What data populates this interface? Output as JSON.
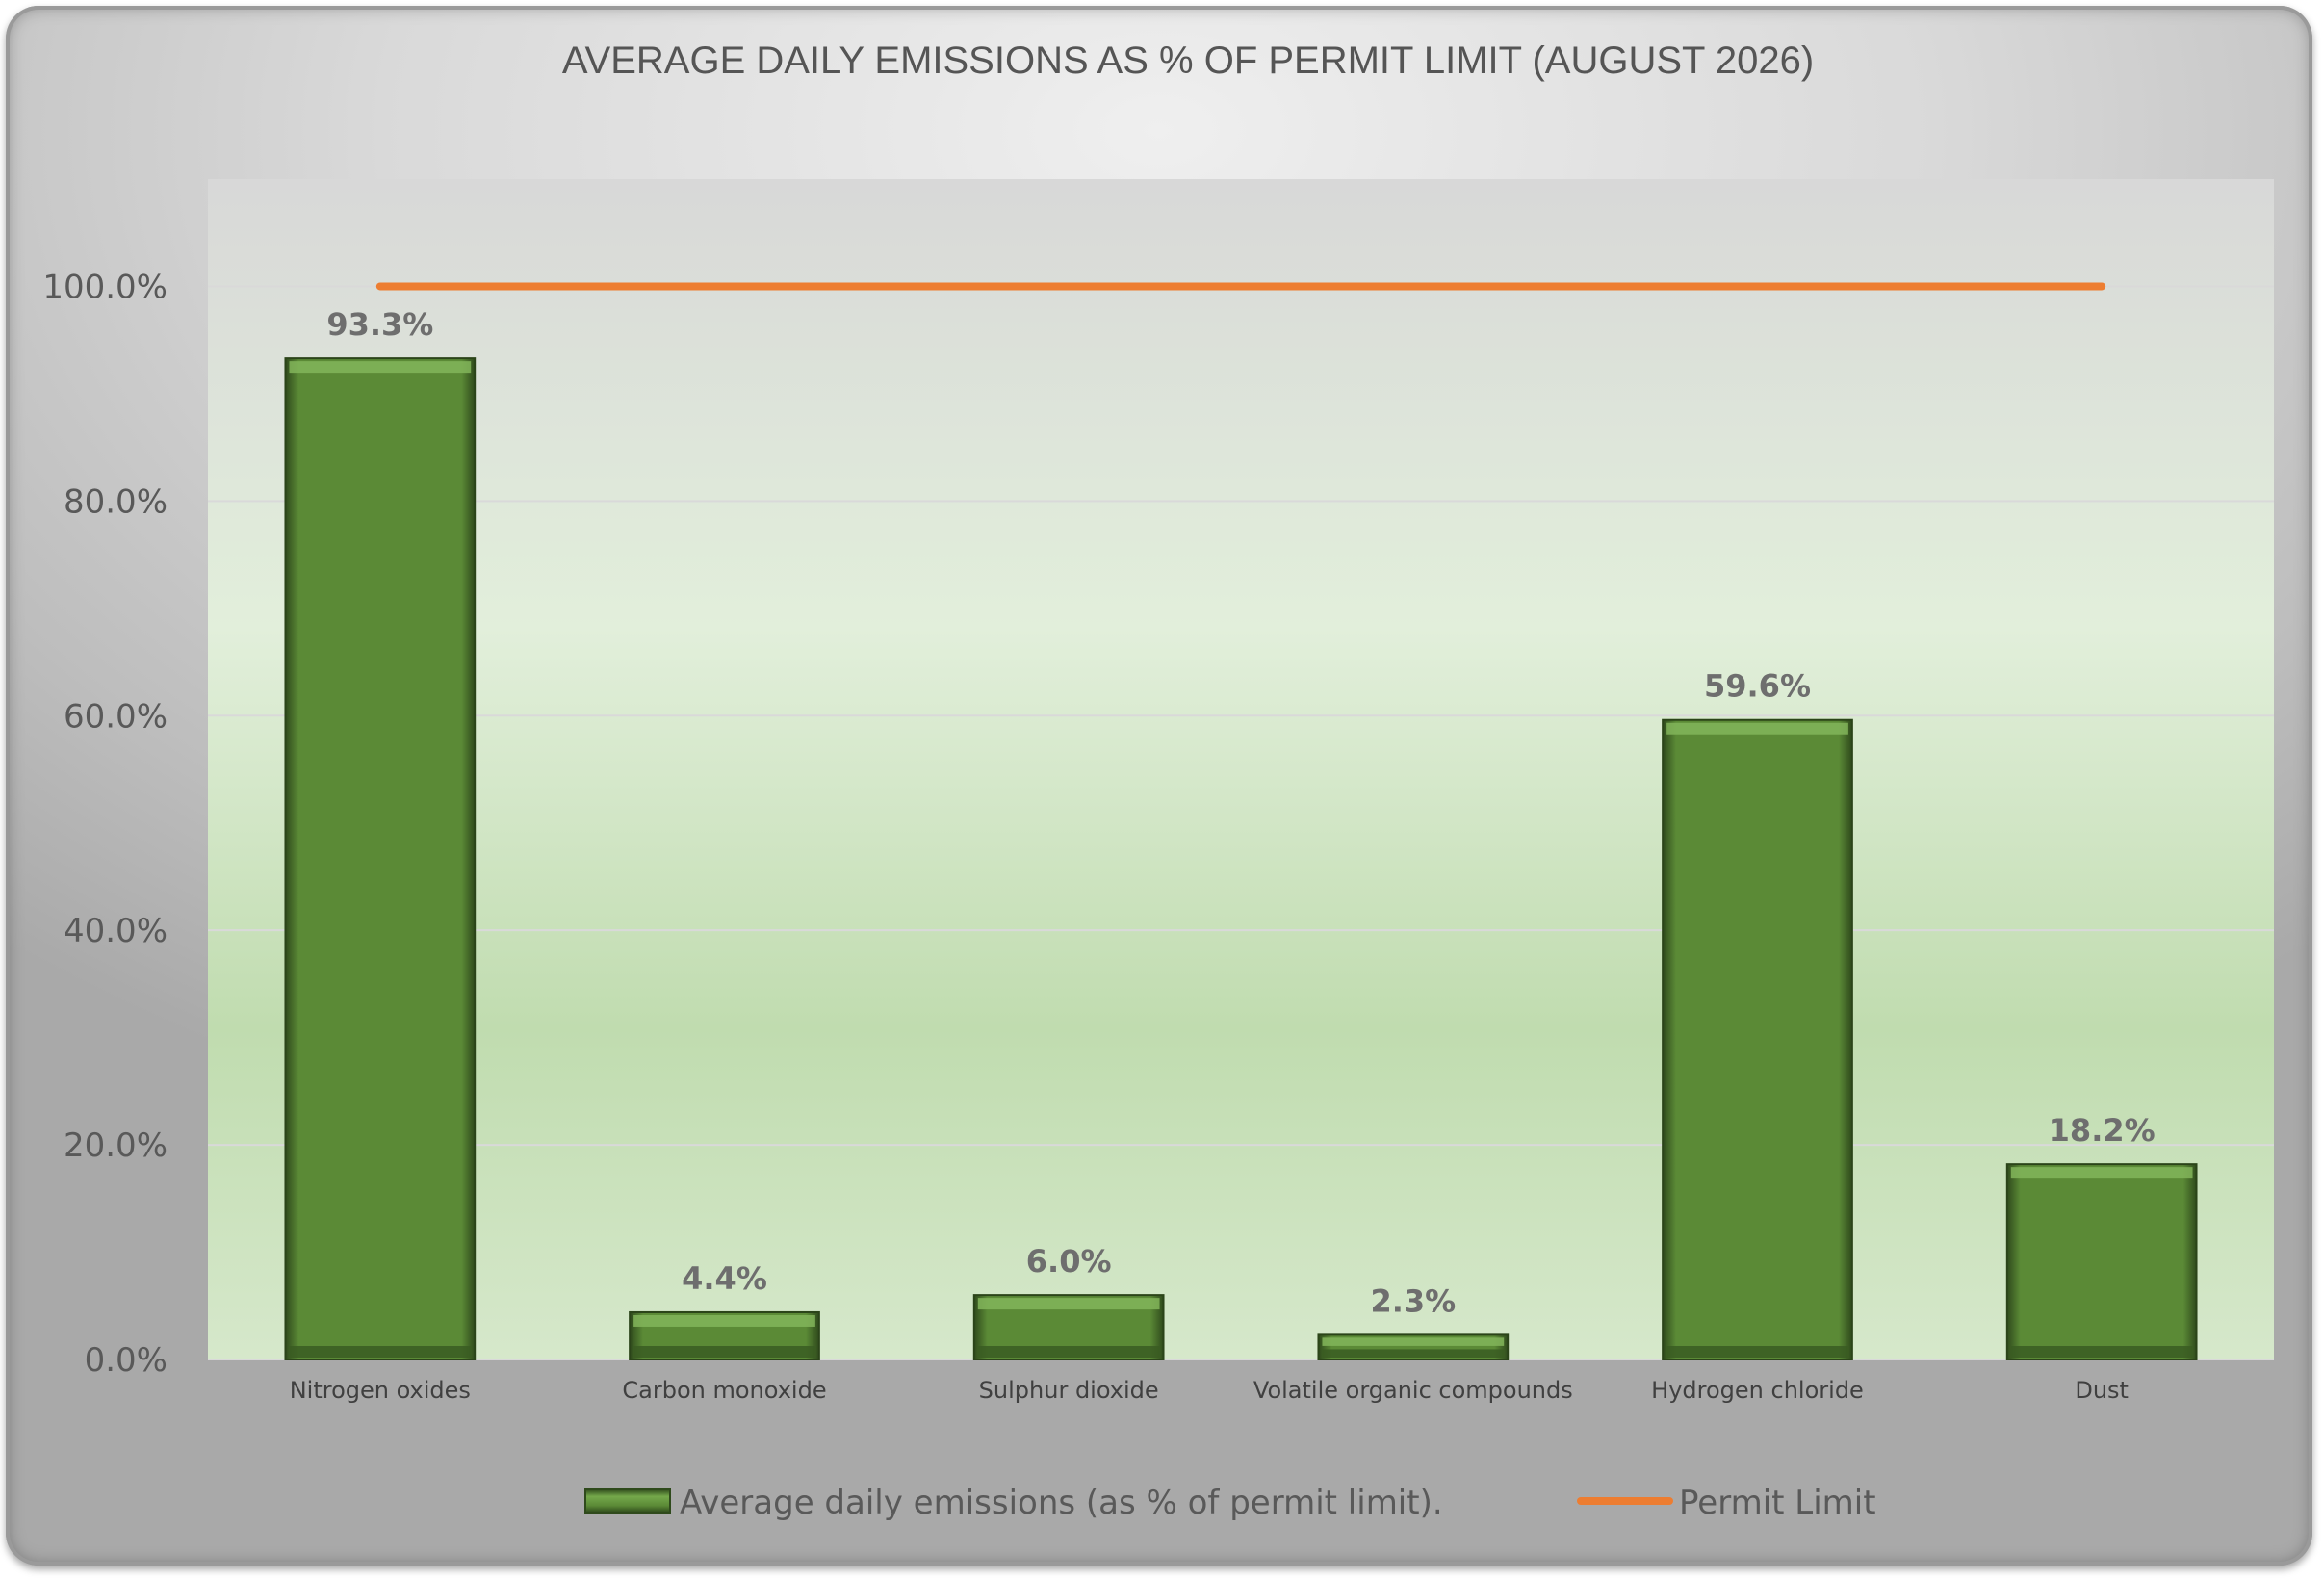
{
  "chart_data": {
    "type": "bar",
    "title": "AVERAGE DAILY EMISSIONS AS % OF PERMIT LIMIT (AUGUST 2026)",
    "categories": [
      "Nitrogen oxides",
      "Carbon monoxide",
      "Sulphur dioxide",
      "Volatile organic compounds",
      "Hydrogen chloride",
      "Dust"
    ],
    "series": [
      {
        "name": "Average daily emissions (as % of permit limit).",
        "kind": "bar",
        "values": [
          93.3,
          4.4,
          6.0,
          2.3,
          59.6,
          18.2
        ],
        "data_labels": [
          "93.3%",
          "4.4%",
          "6.0%",
          "2.3%",
          "59.6%",
          "18.2%"
        ],
        "color": "#5b8a36"
      },
      {
        "name": "Permit Limit",
        "kind": "line",
        "values": [
          100,
          100,
          100,
          100,
          100,
          100
        ],
        "color": "#ed7d31"
      }
    ],
    "xlabel": "",
    "ylabel": "",
    "ylim": [
      0,
      110
    ],
    "yticks": [
      0,
      20,
      40,
      60,
      80,
      100
    ],
    "ytick_labels": [
      "0.0%",
      "20.0%",
      "40.0%",
      "60.0%",
      "80.0%",
      "100.0%"
    ],
    "grid": true,
    "legend_position": "bottom",
    "plot_background": "green gradient",
    "gridline_color": "#d9d9d9"
  }
}
